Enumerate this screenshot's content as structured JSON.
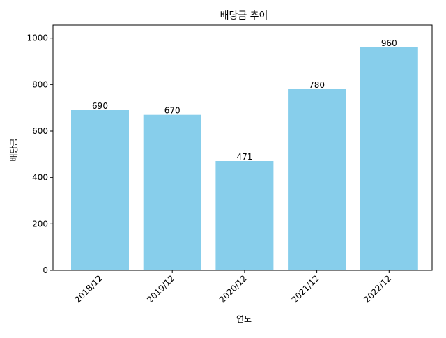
{
  "chart_data": {
    "type": "bar",
    "title": "배당금 추이",
    "xlabel": "연도",
    "ylabel": "배당금",
    "categories": [
      "2018/12",
      "2019/12",
      "2020/12",
      "2021/12",
      "2022/12"
    ],
    "values": [
      690,
      670,
      471,
      780,
      960
    ],
    "data_labels": [
      "690",
      "670",
      "471",
      "780",
      "960"
    ],
    "ylim": [
      0,
      1056
    ],
    "yticks": [
      0,
      200,
      400,
      600,
      800,
      1000
    ],
    "bar_color": "#87CEEB",
    "grid": false,
    "legend": "none",
    "xtick_rotation": 45
  }
}
